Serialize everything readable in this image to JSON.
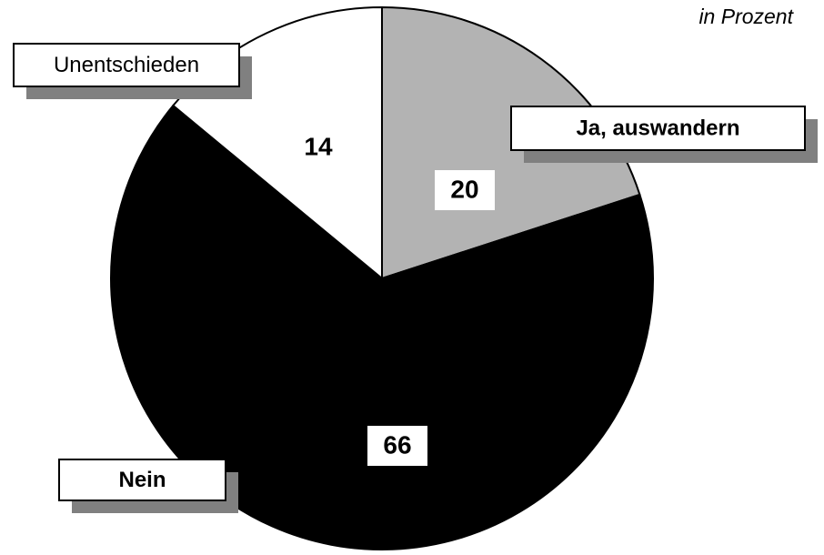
{
  "chart_data": {
    "type": "pie",
    "subtitle": "in Prozent",
    "categories": [
      "Ja, auswandern",
      "Nein",
      "Unentschieden"
    ],
    "values": [
      20,
      66,
      14
    ],
    "colors": [
      "#b3b3b3",
      "#000000",
      "#ffffff"
    ]
  }
}
